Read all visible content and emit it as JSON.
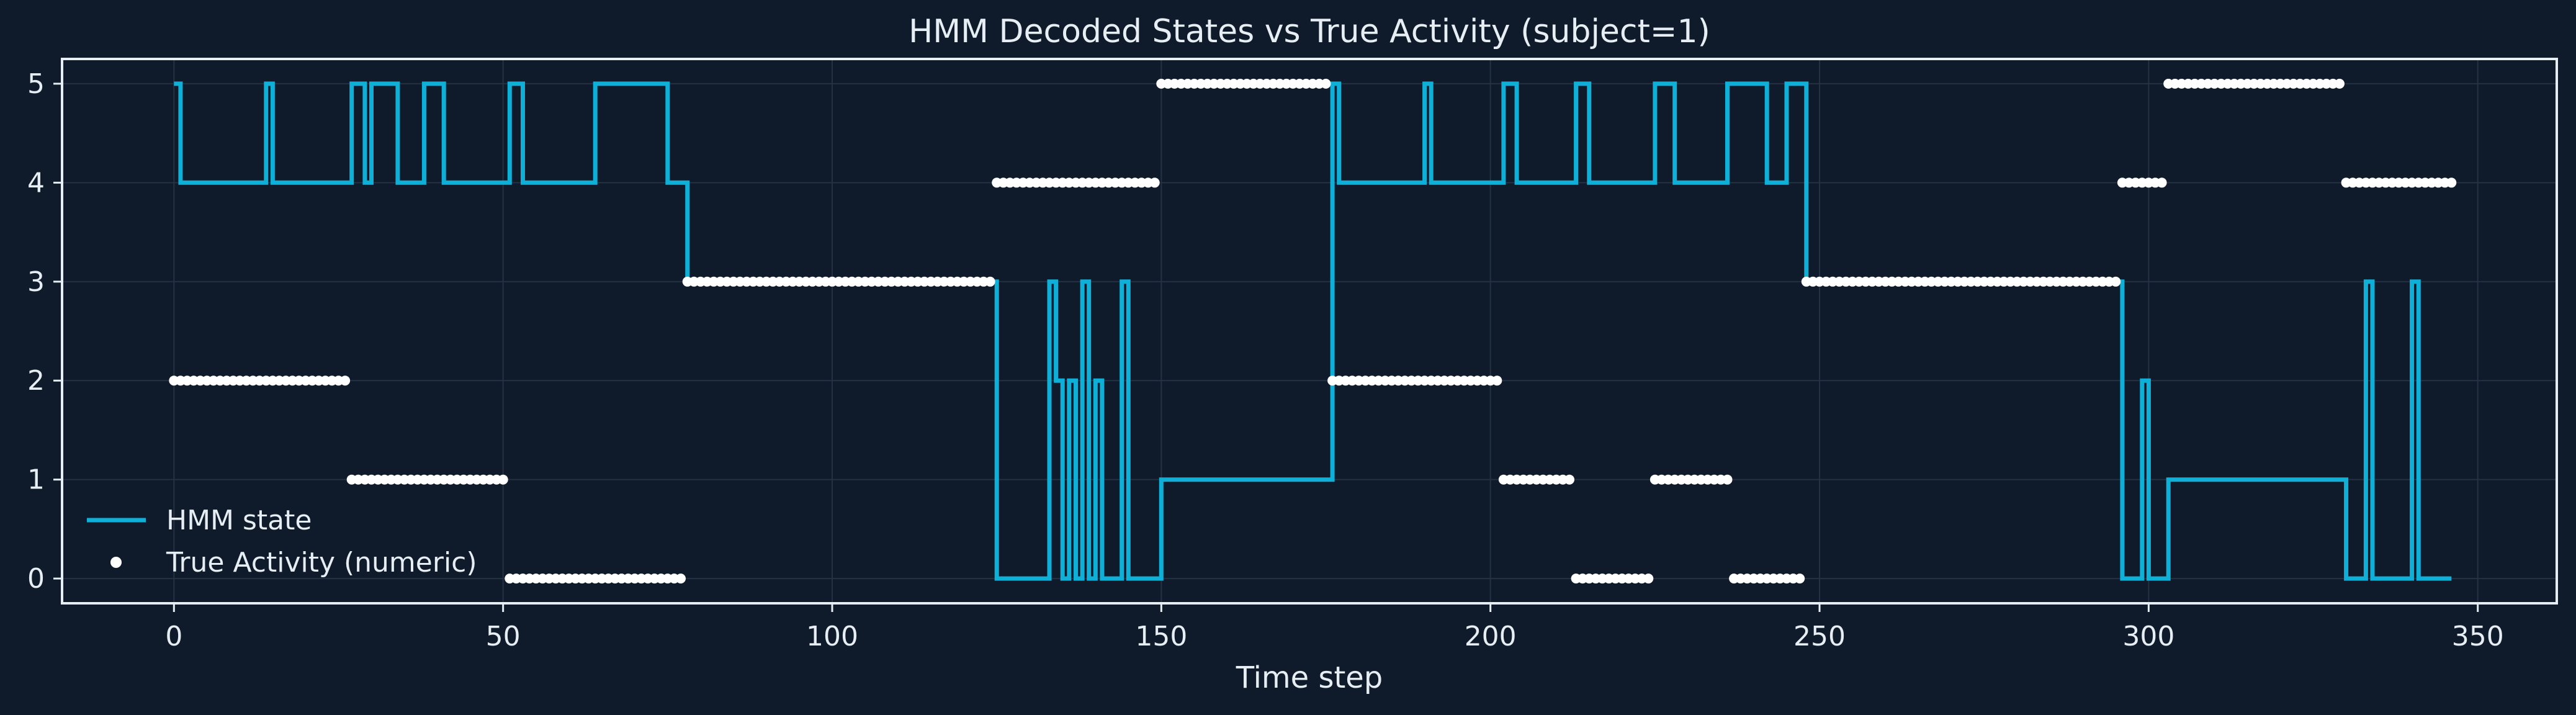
{
  "chart_data": {
    "type": "line",
    "title": "HMM Decoded States vs True Activity (subject=1)",
    "xlabel": "Time step",
    "ylabel": "",
    "xlim": [
      -17,
      362
    ],
    "ylim": [
      -0.25,
      5.25
    ],
    "xticks": [
      0,
      50,
      100,
      150,
      200,
      250,
      300,
      350
    ],
    "yticks": [
      0,
      1,
      2,
      3,
      4,
      5
    ],
    "grid": true,
    "legend_position": "lower-left",
    "colors": {
      "background": "#0f1b2b",
      "hmm": "#0fb0d8",
      "true": "#ffffff",
      "grid": "#243244",
      "text": "#e6edf3"
    },
    "series": [
      {
        "name": "HMM state",
        "kind": "step",
        "segments": [
          [
            0,
            5
          ],
          [
            1,
            4
          ],
          [
            14,
            5
          ],
          [
            15,
            4
          ],
          [
            27,
            5
          ],
          [
            29,
            4
          ],
          [
            30,
            5
          ],
          [
            34,
            4
          ],
          [
            38,
            5
          ],
          [
            41,
            4
          ],
          [
            51,
            5
          ],
          [
            53,
            4
          ],
          [
            64,
            5
          ],
          [
            75,
            4
          ],
          [
            78,
            3
          ],
          [
            125,
            0
          ],
          [
            133,
            3
          ],
          [
            134,
            2
          ],
          [
            135,
            0
          ],
          [
            136,
            2
          ],
          [
            137,
            0
          ],
          [
            138,
            3
          ],
          [
            139,
            0
          ],
          [
            140,
            2
          ],
          [
            141,
            0
          ],
          [
            144,
            3
          ],
          [
            145,
            0
          ],
          [
            150,
            1
          ],
          [
            176,
            5
          ],
          [
            177,
            4
          ],
          [
            190,
            5
          ],
          [
            191,
            4
          ],
          [
            202,
            5
          ],
          [
            204,
            4
          ],
          [
            213,
            5
          ],
          [
            215,
            4
          ],
          [
            225,
            5
          ],
          [
            228,
            4
          ],
          [
            236,
            5
          ],
          [
            242,
            4
          ],
          [
            245,
            5
          ],
          [
            248,
            3
          ],
          [
            296,
            0
          ],
          [
            299,
            2
          ],
          [
            300,
            0
          ],
          [
            303,
            1
          ],
          [
            330,
            0
          ],
          [
            333,
            3
          ],
          [
            334,
            0
          ],
          [
            340,
            3
          ],
          [
            341,
            0
          ]
        ],
        "x_end": 346
      },
      {
        "name": "True Activity (numeric)",
        "kind": "runs",
        "runs": [
          {
            "x_start": 0,
            "x_end": 26,
            "value": 2
          },
          {
            "x_start": 27,
            "x_end": 50,
            "value": 1
          },
          {
            "x_start": 51,
            "x_end": 77,
            "value": 0
          },
          {
            "x_start": 78,
            "x_end": 124,
            "value": 3
          },
          {
            "x_start": 125,
            "x_end": 149,
            "value": 4
          },
          {
            "x_start": 150,
            "x_end": 175,
            "value": 5
          },
          {
            "x_start": 176,
            "x_end": 201,
            "value": 2
          },
          {
            "x_start": 202,
            "x_end": 212,
            "value": 1
          },
          {
            "x_start": 213,
            "x_end": 224,
            "value": 0
          },
          {
            "x_start": 225,
            "x_end": 236,
            "value": 1
          },
          {
            "x_start": 237,
            "x_end": 247,
            "value": 0
          },
          {
            "x_start": 248,
            "x_end": 295,
            "value": 3
          },
          {
            "x_start": 296,
            "x_end": 302,
            "value": 4
          },
          {
            "x_start": 303,
            "x_end": 329,
            "value": 5
          },
          {
            "x_start": 330,
            "x_end": 346,
            "value": 4
          }
        ]
      }
    ]
  }
}
